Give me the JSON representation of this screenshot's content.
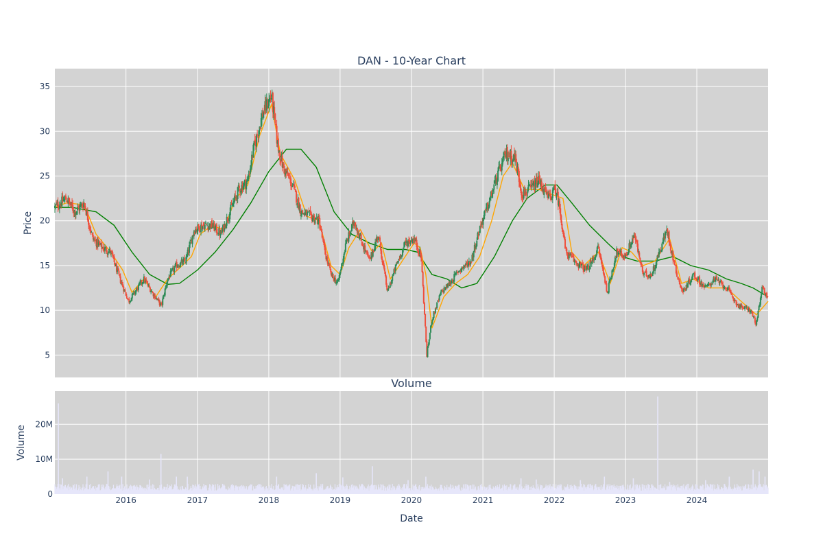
{
  "chart_data": [
    {
      "type": "candlestick",
      "title": "DAN - 10-Year Chart",
      "ylabel": "Price",
      "ylim": [
        2.5,
        37
      ],
      "xlim": [
        "2015-01-02",
        "2024-12-31"
      ],
      "yticks": [
        5,
        10,
        15,
        20,
        25,
        30,
        35
      ],
      "grid": true,
      "colors": {
        "up": "#2e8b57",
        "down": "#ef4f3c",
        "ma_short": "#ffa500",
        "ma_long": "#008000",
        "plot_bg": "#d3d3d3",
        "text": "#2a3f5f"
      },
      "price_series": [
        [
          "2015-01-02",
          21.5
        ],
        [
          "2015-03-01",
          22.5
        ],
        [
          "2015-04-15",
          21.0
        ],
        [
          "2015-06-01",
          22.0
        ],
        [
          "2015-07-15",
          18.0
        ],
        [
          "2015-09-01",
          17.0
        ],
        [
          "2015-10-15",
          16.5
        ],
        [
          "2015-12-01",
          13.5
        ],
        [
          "2016-01-15",
          11.0
        ],
        [
          "2016-03-01",
          12.5
        ],
        [
          "2016-04-01",
          13.5
        ],
        [
          "2016-05-15",
          12.0
        ],
        [
          "2016-06-30",
          10.5
        ],
        [
          "2016-08-01",
          13.5
        ],
        [
          "2016-09-15",
          15.0
        ],
        [
          "2016-11-01",
          15.5
        ],
        [
          "2016-12-15",
          19.0
        ],
        [
          "2017-02-01",
          19.5
        ],
        [
          "2017-03-15",
          19.5
        ],
        [
          "2017-05-01",
          18.5
        ],
        [
          "2017-06-15",
          21.0
        ],
        [
          "2017-08-01",
          23.5
        ],
        [
          "2017-09-15",
          24.5
        ],
        [
          "2017-10-15",
          28.0
        ],
        [
          "2017-12-01",
          32.0
        ],
        [
          "2018-01-15",
          34.0
        ],
        [
          "2018-02-15",
          28.5
        ],
        [
          "2018-03-15",
          26.0
        ],
        [
          "2018-05-01",
          24.0
        ],
        [
          "2018-06-15",
          21.0
        ],
        [
          "2018-08-01",
          20.5
        ],
        [
          "2018-09-15",
          20.0
        ],
        [
          "2018-10-15",
          16.5
        ],
        [
          "2018-11-15",
          14.0
        ],
        [
          "2018-12-20",
          13.0
        ],
        [
          "2019-02-01",
          17.5
        ],
        [
          "2019-03-15",
          20.0
        ],
        [
          "2019-04-15",
          18.0
        ],
        [
          "2019-06-01",
          15.5
        ],
        [
          "2019-07-15",
          18.5
        ],
        [
          "2019-09-01",
          12.0
        ],
        [
          "2019-10-15",
          15.0
        ],
        [
          "2019-12-01",
          17.5
        ],
        [
          "2020-01-15",
          18.0
        ],
        [
          "2020-02-20",
          16.0
        ],
        [
          "2020-03-20",
          5.0
        ],
        [
          "2020-04-15",
          9.0
        ],
        [
          "2020-06-01",
          12.0
        ],
        [
          "2020-07-15",
          13.0
        ],
        [
          "2020-09-01",
          14.5
        ],
        [
          "2020-11-01",
          15.5
        ],
        [
          "2020-12-20",
          19.5
        ],
        [
          "2021-02-01",
          22.0
        ],
        [
          "2021-03-15",
          25.0
        ],
        [
          "2021-05-01",
          27.5
        ],
        [
          "2021-06-15",
          27.0
        ],
        [
          "2021-07-20",
          23.0
        ],
        [
          "2021-09-01",
          23.5
        ],
        [
          "2021-10-15",
          24.5
        ],
        [
          "2021-12-01",
          22.5
        ],
        [
          "2022-01-10",
          23.5
        ],
        [
          "2022-02-01",
          21.0
        ],
        [
          "2022-03-01",
          16.5
        ],
        [
          "2022-04-15",
          15.5
        ],
        [
          "2022-06-15",
          14.5
        ],
        [
          "2022-07-15",
          15.5
        ],
        [
          "2022-08-15",
          17.0
        ],
        [
          "2022-09-30",
          12.0
        ],
        [
          "2022-11-15",
          16.5
        ],
        [
          "2023-01-01",
          16.0
        ],
        [
          "2023-02-15",
          18.5
        ],
        [
          "2023-04-01",
          14.0
        ],
        [
          "2023-05-15",
          14.0
        ],
        [
          "2023-07-01",
          17.0
        ],
        [
          "2023-08-01",
          19.0
        ],
        [
          "2023-09-15",
          14.5
        ],
        [
          "2023-10-20",
          12.0
        ],
        [
          "2023-12-15",
          14.0
        ],
        [
          "2024-02-15",
          12.5
        ],
        [
          "2024-04-01",
          13.5
        ],
        [
          "2024-06-01",
          12.5
        ],
        [
          "2024-08-01",
          10.5
        ],
        [
          "2024-10-01",
          10.0
        ],
        [
          "2024-11-01",
          8.5
        ],
        [
          "2024-12-01",
          12.5
        ],
        [
          "2024-12-31",
          11.5
        ]
      ],
      "ma_short": [
        [
          "2015-01-02",
          21.5
        ],
        [
          "2015-03-01",
          22.0
        ],
        [
          "2015-06-01",
          21.8
        ],
        [
          "2015-08-01",
          18.5
        ],
        [
          "2015-10-15",
          16.5
        ],
        [
          "2015-12-15",
          14.5
        ],
        [
          "2016-02-01",
          12.0
        ],
        [
          "2016-04-01",
          13.5
        ],
        [
          "2016-06-01",
          11.5
        ],
        [
          "2016-08-01",
          13.5
        ],
        [
          "2016-10-15",
          15.0
        ],
        [
          "2016-12-01",
          16.0
        ],
        [
          "2017-01-15",
          18.5
        ],
        [
          "2017-03-15",
          19.5
        ],
        [
          "2017-05-15",
          19.0
        ],
        [
          "2017-07-15",
          22.5
        ],
        [
          "2017-09-15",
          24.0
        ],
        [
          "2017-11-15",
          29.5
        ],
        [
          "2018-01-15",
          33.0
        ],
        [
          "2018-03-01",
          27.5
        ],
        [
          "2018-05-15",
          24.5
        ],
        [
          "2018-07-15",
          20.5
        ],
        [
          "2018-09-15",
          20.0
        ],
        [
          "2018-11-15",
          15.0
        ],
        [
          "2019-01-01",
          14.0
        ],
        [
          "2019-02-15",
          17.0
        ],
        [
          "2019-04-15",
          19.0
        ],
        [
          "2019-06-15",
          16.5
        ],
        [
          "2019-08-01",
          17.5
        ],
        [
          "2019-09-15",
          13.5
        ],
        [
          "2019-11-15",
          15.5
        ],
        [
          "2020-01-15",
          17.5
        ],
        [
          "2020-02-15",
          17.0
        ],
        [
          "2020-03-15",
          14.0
        ],
        [
          "2020-04-15",
          8.0
        ],
        [
          "2020-06-15",
          11.5
        ],
        [
          "2020-08-15",
          13.0
        ],
        [
          "2020-10-15",
          14.0
        ],
        [
          "2020-12-15",
          16.0
        ],
        [
          "2021-02-15",
          20.0
        ],
        [
          "2021-04-15",
          25.0
        ],
        [
          "2021-06-01",
          26.5
        ],
        [
          "2021-08-01",
          23.5
        ],
        [
          "2021-10-15",
          23.5
        ],
        [
          "2021-12-15",
          23.0
        ],
        [
          "2022-02-15",
          22.5
        ],
        [
          "2022-04-01",
          16.5
        ],
        [
          "2022-06-01",
          15.0
        ],
        [
          "2022-08-15",
          16.5
        ],
        [
          "2022-10-15",
          13.0
        ],
        [
          "2022-12-15",
          17.0
        ],
        [
          "2023-02-01",
          16.5
        ],
        [
          "2023-04-01",
          15.0
        ],
        [
          "2023-06-01",
          15.5
        ],
        [
          "2023-08-15",
          18.0
        ],
        [
          "2023-10-15",
          13.0
        ],
        [
          "2023-12-15",
          13.5
        ],
        [
          "2024-03-01",
          12.5
        ],
        [
          "2024-06-01",
          12.5
        ],
        [
          "2024-08-15",
          11.0
        ],
        [
          "2024-11-01",
          9.5
        ],
        [
          "2024-12-31",
          11.0
        ]
      ],
      "ma_long": [
        [
          "2015-01-02",
          21.5
        ],
        [
          "2015-04-01",
          21.5
        ],
        [
          "2015-08-01",
          21.0
        ],
        [
          "2015-11-01",
          19.5
        ],
        [
          "2016-02-01",
          16.5
        ],
        [
          "2016-05-01",
          14.0
        ],
        [
          "2016-08-01",
          12.9
        ],
        [
          "2016-10-01",
          13.0
        ],
        [
          "2017-01-01",
          14.5
        ],
        [
          "2017-04-01",
          16.5
        ],
        [
          "2017-07-01",
          19.0
        ],
        [
          "2017-10-01",
          22.0
        ],
        [
          "2018-01-01",
          25.5
        ],
        [
          "2018-04-01",
          28.0
        ],
        [
          "2018-06-15",
          28.0
        ],
        [
          "2018-09-01",
          26.0
        ],
        [
          "2018-12-01",
          21.0
        ],
        [
          "2019-03-01",
          18.5
        ],
        [
          "2019-06-01",
          17.5
        ],
        [
          "2019-09-01",
          16.8
        ],
        [
          "2019-12-01",
          16.8
        ],
        [
          "2020-02-01",
          16.5
        ],
        [
          "2020-04-15",
          14.0
        ],
        [
          "2020-07-01",
          13.5
        ],
        [
          "2020-09-15",
          12.5
        ],
        [
          "2020-12-01",
          13.0
        ],
        [
          "2021-03-01",
          16.0
        ],
        [
          "2021-06-01",
          20.0
        ],
        [
          "2021-08-15",
          22.5
        ],
        [
          "2021-11-15",
          24.0
        ],
        [
          "2022-01-15",
          24.0
        ],
        [
          "2022-04-01",
          22.0
        ],
        [
          "2022-07-01",
          19.5
        ],
        [
          "2022-10-01",
          17.5
        ],
        [
          "2022-12-15",
          16.0
        ],
        [
          "2023-03-01",
          15.5
        ],
        [
          "2023-06-01",
          15.5
        ],
        [
          "2023-09-01",
          16.0
        ],
        [
          "2023-12-01",
          15.0
        ],
        [
          "2024-03-01",
          14.5
        ],
        [
          "2024-06-01",
          13.5
        ],
        [
          "2024-08-15",
          13.0
        ],
        [
          "2024-10-15",
          12.5
        ],
        [
          "2024-12-31",
          11.5
        ]
      ]
    },
    {
      "type": "bar",
      "title": "Volume",
      "xlabel": "Date",
      "ylabel": "Volume",
      "ylim": [
        0,
        29500000
      ],
      "yticks": [
        0,
        10000000,
        20000000
      ],
      "ytick_labels": [
        "0",
        "10M",
        "20M"
      ],
      "xticks": [
        "2016-01-01",
        "2017-01-01",
        "2018-01-01",
        "2019-01-01",
        "2020-01-01",
        "2021-01-01",
        "2022-01-01",
        "2023-01-01",
        "2024-01-01"
      ],
      "xtick_labels": [
        "2016",
        "2017",
        "2018",
        "2019",
        "2020",
        "2021",
        "2022",
        "2023",
        "2024"
      ],
      "grid": true,
      "colors": {
        "bar": "#e6e6fa",
        "plot_bg": "#d3d3d3"
      },
      "baseline": 2200000,
      "spikes": [
        [
          "2015-01-20",
          26000000
        ],
        [
          "2015-02-10",
          4500000
        ],
        [
          "2015-06-15",
          5000000
        ],
        [
          "2015-10-01",
          6500000
        ],
        [
          "2015-12-10",
          5000000
        ],
        [
          "2016-05-01",
          4200000
        ],
        [
          "2016-06-28",
          11500000
        ],
        [
          "2016-09-15",
          5000000
        ],
        [
          "2016-11-10",
          5000000
        ],
        [
          "2018-02-10",
          5000000
        ],
        [
          "2018-09-01",
          6000000
        ],
        [
          "2019-01-15",
          4800000
        ],
        [
          "2019-06-15",
          8000000
        ],
        [
          "2019-12-15",
          4000000
        ],
        [
          "2020-03-15",
          5000000
        ],
        [
          "2021-07-15",
          4500000
        ],
        [
          "2021-10-01",
          4200000
        ],
        [
          "2022-05-15",
          4000000
        ],
        [
          "2022-09-15",
          5000000
        ],
        [
          "2023-02-10",
          4500000
        ],
        [
          "2023-06-15",
          28000000
        ],
        [
          "2023-08-15",
          3500000
        ],
        [
          "2024-02-15",
          4000000
        ],
        [
          "2024-06-15",
          5000000
        ],
        [
          "2024-10-15",
          7000000
        ],
        [
          "2024-11-15",
          6500000
        ],
        [
          "2024-12-15",
          5000000
        ]
      ]
    }
  ]
}
